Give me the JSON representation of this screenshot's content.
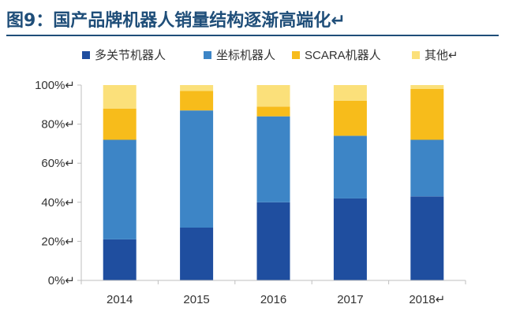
{
  "title": "图9：国产品牌机器人销量结构逐渐高端化↵",
  "colors": {
    "title": "#1f4e79",
    "axis": "#bfbfbf",
    "text": "#333333"
  },
  "chart_data": {
    "type": "bar",
    "stacked": true,
    "title": "图9：国产品牌机器人销量结构逐渐高端化",
    "xlabel": "",
    "ylabel": "",
    "ylim": [
      0,
      100
    ],
    "yticks": [
      0,
      20,
      40,
      60,
      80,
      100
    ],
    "ytick_labels": [
      "0%↵",
      "20%↵",
      "40%↵",
      "60%↵",
      "80%↵",
      "100%↵"
    ],
    "categories": [
      "2014",
      "2015",
      "2016",
      "2017",
      "2018"
    ],
    "category_labels": [
      "2014",
      "2015",
      "2016",
      "2017",
      "2018↵"
    ],
    "legend_position": "top",
    "grid": false,
    "series": [
      {
        "name": "多关节机器人",
        "legend_label": "多关节机器人",
        "color": "#1f4e9f",
        "values": [
          21,
          27,
          40,
          42,
          43
        ]
      },
      {
        "name": "坐标机器人",
        "legend_label": "坐标机器人",
        "color": "#3d85c6",
        "values": [
          51,
          60,
          44,
          32,
          29
        ]
      },
      {
        "name": "SCARA机器人",
        "legend_label": "SCARA机器人",
        "color": "#f7bc1b",
        "values": [
          16,
          10,
          5,
          18,
          26
        ]
      },
      {
        "name": "其他",
        "legend_label": "其他↵",
        "color": "#fbe07a",
        "values": [
          12,
          3,
          11,
          8,
          2
        ]
      }
    ]
  }
}
